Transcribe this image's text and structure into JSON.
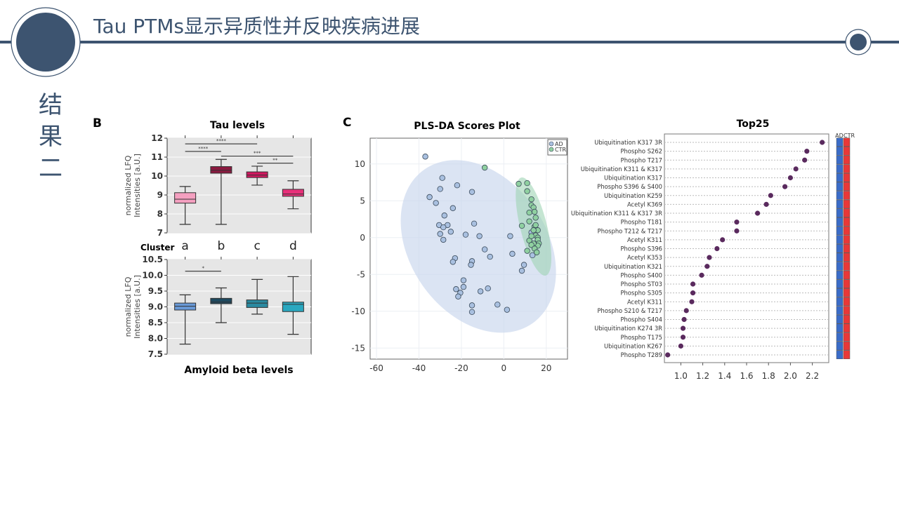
{
  "slide": {
    "title": "Tau PTMs显示异质性并反映疾病进展",
    "side_label": [
      "结",
      "果",
      "二"
    ],
    "accent_color": "#3d5470"
  },
  "chart_data": [
    {
      "panel_letter": "B",
      "type": "box",
      "title": "Tau levels",
      "ylabel": [
        "normalized LFQ",
        "Intensities [a.U.]"
      ],
      "xlabel_prefix": "Cluster",
      "categories": [
        "a",
        "b",
        "c",
        "d"
      ],
      "ylim": [
        7,
        12
      ],
      "yticks": [
        "7",
        "8",
        "9",
        "10",
        "11",
        "12"
      ],
      "boxes": [
        {
          "min": 7.45,
          "q1": 8.57,
          "median": 8.78,
          "q3": 9.12,
          "max": 9.45,
          "color": "#f4a0c0"
        },
        {
          "min": 7.45,
          "q1": 10.15,
          "median": 10.3,
          "q3": 10.5,
          "max": 10.88,
          "color": "#8b1a40"
        },
        {
          "min": 9.52,
          "q1": 9.92,
          "median": 10.05,
          "q3": 10.22,
          "max": 10.52,
          "color": "#d01860"
        },
        {
          "min": 8.27,
          "q1": 8.93,
          "median": 9.05,
          "q3": 9.3,
          "max": 9.75,
          "color": "#e8307a"
        }
      ],
      "significance": [
        {
          "from": "a",
          "to": "c",
          "y": 11.7,
          "label": "****"
        },
        {
          "from": "a",
          "to": "b",
          "y": 11.3,
          "label": "****"
        },
        {
          "from": "b",
          "to": "d",
          "y": 11.05,
          "label": "***"
        },
        {
          "from": "c",
          "to": "d",
          "y": 10.68,
          "label": "**"
        }
      ]
    },
    {
      "type": "box",
      "title": "Amyloid beta levels",
      "ylabel": [
        "normalized LFQ",
        "Intensities [a.U.]"
      ],
      "categories": [
        "a",
        "b",
        "c",
        "d"
      ],
      "ylim": [
        7.5,
        10.5
      ],
      "yticks": [
        "7.5",
        "8.0",
        "8.5",
        "9.0",
        "9.5",
        "10.0",
        "10.5"
      ],
      "boxes": [
        {
          "min": 7.82,
          "q1": 8.9,
          "median": 9.02,
          "q3": 9.12,
          "max": 9.38,
          "color": "#6a9ad8"
        },
        {
          "min": 8.5,
          "q1": 9.1,
          "median": 9.15,
          "q3": 9.27,
          "max": 9.6,
          "color": "#1f4a5f"
        },
        {
          "min": 8.77,
          "q1": 8.98,
          "median": 9.12,
          "q3": 9.22,
          "max": 9.87,
          "color": "#2a8aa0"
        },
        {
          "min": 8.13,
          "q1": 8.85,
          "median": 9.08,
          "q3": 9.15,
          "max": 9.96,
          "color": "#2aa8c0"
        }
      ],
      "significance": [
        {
          "from": "a",
          "to": "b",
          "y": 10.13,
          "label": "*"
        }
      ]
    },
    {
      "panel_letter": "C",
      "type": "scatter",
      "title": "PLS-DA Scores Plot",
      "xlim": [
        -63,
        30
      ],
      "ylim": [
        -16.5,
        13.5
      ],
      "xticks": [
        -60,
        -40,
        -20,
        0,
        20
      ],
      "yticks": [
        10,
        5,
        0,
        -5,
        -10,
        -15
      ],
      "legend": {
        "placement": "top-right",
        "entries": [
          "AD",
          "CTR"
        ]
      },
      "series": [
        {
          "name": "AD",
          "color": "#a9c0e0",
          "points": [
            [
              -37,
              11
            ],
            [
              -29,
              8.1
            ],
            [
              -30,
              6.6
            ],
            [
              -22,
              7.1
            ],
            [
              -15,
              6.2
            ],
            [
              -35,
              5.5
            ],
            [
              -32,
              4.7
            ],
            [
              -24,
              4
            ],
            [
              -28,
              3
            ],
            [
              -14,
              1.9
            ],
            [
              -30.5,
              1.7
            ],
            [
              -26.5,
              1.7
            ],
            [
              -28.5,
              1.4
            ],
            [
              -25,
              0.8
            ],
            [
              -30,
              0.5
            ],
            [
              -18,
              0.4
            ],
            [
              -11.5,
              0.2
            ],
            [
              3,
              0.2
            ],
            [
              -28.5,
              -0.3
            ],
            [
              -9,
              -1.6
            ],
            [
              4,
              -2.2
            ],
            [
              -6.5,
              -2.6
            ],
            [
              -23,
              -2.8
            ],
            [
              -24,
              -3.3
            ],
            [
              -15,
              -3.2
            ],
            [
              -15.5,
              -3.7
            ],
            [
              9.5,
              -3.7
            ],
            [
              8.5,
              -4.5
            ],
            [
              -19,
              -5.8
            ],
            [
              -22.5,
              -7
            ],
            [
              -19,
              -6.7
            ],
            [
              -20.5,
              -7.5
            ],
            [
              -11,
              -7.3
            ],
            [
              -7.5,
              -6.9
            ],
            [
              -21.5,
              -8
            ],
            [
              -15,
              -9.2
            ],
            [
              -15,
              -10.1
            ],
            [
              -3,
              -9.1
            ],
            [
              1.5,
              -9.8
            ],
            [
              13,
              0.7
            ],
            [
              13.5,
              -2.4
            ]
          ]
        },
        {
          "name": "CTR",
          "color": "#8fd0a0",
          "points": [
            [
              -9,
              9.5
            ],
            [
              7,
              7.3
            ],
            [
              11,
              7.4
            ],
            [
              11,
              6.3
            ],
            [
              13,
              5.2
            ],
            [
              13,
              4.4
            ],
            [
              14,
              4.1
            ],
            [
              14.5,
              3.5
            ],
            [
              12,
              3.4
            ],
            [
              15,
              2.7
            ],
            [
              12,
              2.2
            ],
            [
              14.5,
              1.5
            ],
            [
              15,
              1.7
            ],
            [
              8.5,
              1.6
            ],
            [
              16,
              1
            ],
            [
              14,
              1
            ],
            [
              15,
              0.3
            ],
            [
              16,
              0
            ],
            [
              16,
              -0.3
            ],
            [
              12,
              -0.4
            ],
            [
              16.5,
              -0.8
            ],
            [
              16,
              -1.1
            ],
            [
              14,
              -0.8
            ],
            [
              13,
              -1
            ],
            [
              11,
              -1.8
            ],
            [
              14.5,
              -1.5
            ],
            [
              15.5,
              -2
            ],
            [
              13,
              0.2
            ]
          ]
        }
      ]
    },
    {
      "type": "dot",
      "title": "Top25",
      "xlim": [
        0.85,
        2.35
      ],
      "xticks": [
        "1.0",
        "1.2",
        "1.4",
        "1.6",
        "1.8",
        "2.0",
        "2.2"
      ],
      "heatmap_columns": [
        "AD",
        "CTR"
      ],
      "heatmap_colors": {
        "AD": "#3a6cc8",
        "CTR": "#e83838"
      },
      "dot_color": "#5a2a5e",
      "labels": [
        "Ubiquitination K317 3R",
        "Phospho S262",
        "Phospho T217",
        "Ubiquitination K311 & K317",
        "Ubiquitination K317",
        "Phospho S396 & S400",
        "Ubiquitination K259",
        "Acetyl K369",
        "Ubiquitination K311 & K317 3R",
        "Phospho T181",
        "Phospho T212 & T217",
        "Acetyl K311",
        "Phospho S396",
        "Acetyl K353",
        "Ubiquitination K321",
        "Phospho S400",
        "Phospho ST03",
        "Phospho S305",
        "Acetyl K311",
        "Phospho S210 & T217",
        "Phospho S404",
        "Ubiquitination K274 3R",
        "Phospho T175",
        "Ubiquitination K267",
        "Phospho T289"
      ],
      "values": [
        2.29,
        2.15,
        2.13,
        2.05,
        2.0,
        1.95,
        1.82,
        1.78,
        1.7,
        1.51,
        1.51,
        1.38,
        1.33,
        1.26,
        1.24,
        1.19,
        1.11,
        1.11,
        1.1,
        1.05,
        1.03,
        1.02,
        1.02,
        1.0,
        0.88
      ]
    }
  ]
}
